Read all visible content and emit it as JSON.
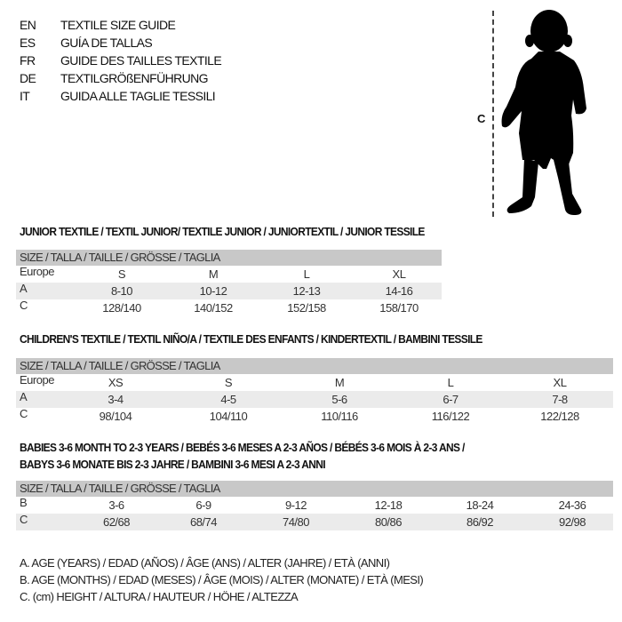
{
  "languages": [
    {
      "code": "EN",
      "name": "TEXTILE SIZE GUIDE"
    },
    {
      "code": "ES",
      "name": "GUÍA DE TALLAS"
    },
    {
      "code": "FR",
      "name": "GUIDE DES TAILLES TEXTILE"
    },
    {
      "code": "DE",
      "name": "TEXTILGRÖßENFÜHRUNG"
    },
    {
      "code": "IT",
      "name": "GUIDA ALLE TAGLIE TESSILI"
    }
  ],
  "figure": {
    "height_label": "C"
  },
  "junior": {
    "title": "JUNIOR TEXTILE / TEXTIL JUNIOR/ TEXTILE JUNIOR / JUNIORTEXTIL / JUNIOR TESSILE",
    "header": "SIZE / TALLA / TAILLE / GRÖSSE / TAGLIA",
    "rows": [
      {
        "label": "Europe",
        "values": [
          "S",
          "M",
          "L",
          "XL"
        ]
      },
      {
        "label": "A",
        "values": [
          "8-10",
          "10-12",
          "12-13",
          "14-16"
        ]
      },
      {
        "label": "C",
        "values": [
          "128/140",
          "140/152",
          "152/158",
          "158/170"
        ]
      }
    ]
  },
  "children": {
    "title": "CHILDREN'S TEXTILE / TEXTIL NIÑO/A / TEXTILE DES ENFANTS / KINDERTEXTIL / BAMBINI TESSILE",
    "header": "SIZE / TALLA / TAILLE / GRÖSSE / TAGLIA",
    "rows": [
      {
        "label": "Europe",
        "values": [
          "XS",
          "S",
          "M",
          "L",
          "XL"
        ]
      },
      {
        "label": "A",
        "values": [
          "3-4",
          "4-5",
          "5-6",
          "6-7",
          "7-8"
        ]
      },
      {
        "label": "C",
        "values": [
          "98/104",
          "104/110",
          "110/116",
          "116/122",
          "122/128"
        ]
      }
    ]
  },
  "babies": {
    "title_line1": "BABIES 3-6 MONTH TO 2-3 YEARS / BEBÉS 3-6 MESES A 2-3 AÑOS / BÉBÉS 3-6 MOIS À 2-3 ANS /",
    "title_line2": "BABYS 3-6 MONATE BIS 2-3 JAHRE / BAMBINI 3-6 MESI A 2-3 ANNI",
    "header": "SIZE / TALLA / TAILLE / GRÖSSE / TAGLIA",
    "rows": [
      {
        "label": "B",
        "values": [
          "3-6",
          "6-9",
          "9-12",
          "12-18",
          "18-24",
          "24-36"
        ]
      },
      {
        "label": "C",
        "values": [
          "62/68",
          "68/74",
          "74/80",
          "80/86",
          "86/92",
          "92/98"
        ]
      }
    ]
  },
  "legend": [
    "A. AGE (YEARS) / EDAD (AÑOS) / ÂGE (ANS) / ALTER (JAHRE) / ETÀ (ANNI)",
    "B. AGE (MONTHS) / EDAD (MESES) / ÂGE (MOIS) / ALTER (MONATE) / ETÀ (MESI)",
    "C. (cm) HEIGHT / ALTURA / HAUTEUR / HÖHE / ALTEZZA"
  ]
}
